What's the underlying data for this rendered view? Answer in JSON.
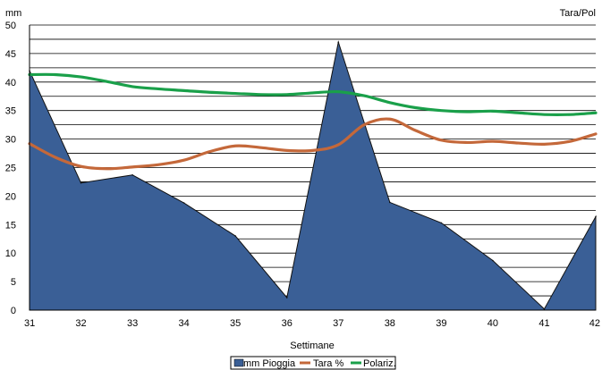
{
  "chart_data": {
    "type": "area+line",
    "x_categories": [
      "31",
      "32",
      "33",
      "34",
      "35",
      "36",
      "37",
      "38",
      "39",
      "40",
      "41",
      "42"
    ],
    "ylabel_left": "mm",
    "ylabel_right": "Tara/Pol",
    "xlabel": "Settimane",
    "ylim": [
      0,
      50
    ],
    "ytick_labels": [
      "0",
      "5",
      "10",
      "15",
      "20",
      "25",
      "30",
      "35",
      "40",
      "45",
      "50"
    ],
    "series": [
      {
        "name": "mm Pioggia",
        "type": "area",
        "color": "#3a5f96",
        "x": [
          31,
          32,
          33,
          34,
          35,
          36,
          37,
          38,
          39,
          40,
          41,
          42
        ],
        "values": [
          42,
          22.3,
          23.7,
          18.8,
          13,
          2.2,
          47,
          18.9,
          15.3,
          8.7,
          0.2,
          16.4
        ]
      },
      {
        "name": "Tara %",
        "type": "line",
        "color": "#c4683a",
        "x": [
          31,
          31.5,
          32,
          32.5,
          33,
          33.5,
          34,
          34.5,
          35,
          35.5,
          36,
          36.5,
          37,
          37.5,
          38,
          38.5,
          39,
          39.5,
          40,
          40.5,
          41,
          41.5,
          42
        ],
        "values": [
          29.2,
          26.8,
          25.2,
          24.8,
          25.1,
          25.5,
          26.3,
          27.8,
          28.8,
          28.5,
          28,
          28,
          29,
          32.5,
          33.5,
          31.5,
          29.8,
          29.4,
          29.6,
          29.3,
          29.1,
          29.6,
          30.9
        ]
      },
      {
        "name": "Polariz.",
        "type": "line",
        "color": "#1aa04a",
        "x": [
          31,
          31.5,
          32,
          32.5,
          33,
          33.5,
          34,
          34.5,
          35,
          35.5,
          36,
          36.5,
          37,
          37.5,
          38,
          38.5,
          39,
          39.5,
          40,
          40.5,
          41,
          41.5,
          42
        ],
        "values": [
          41.3,
          41.3,
          40.9,
          40.1,
          39.2,
          38.8,
          38.5,
          38.2,
          38,
          37.8,
          37.8,
          38.1,
          38.3,
          37.6,
          36.4,
          35.5,
          35,
          34.8,
          34.9,
          34.6,
          34.3,
          34.3,
          34.6
        ]
      }
    ],
    "grid": {
      "horizontal": true,
      "vertical": false
    },
    "legend_position": "bottom-center",
    "legend": [
      "mm Pioggia",
      "Tara %",
      "Polariz."
    ]
  }
}
